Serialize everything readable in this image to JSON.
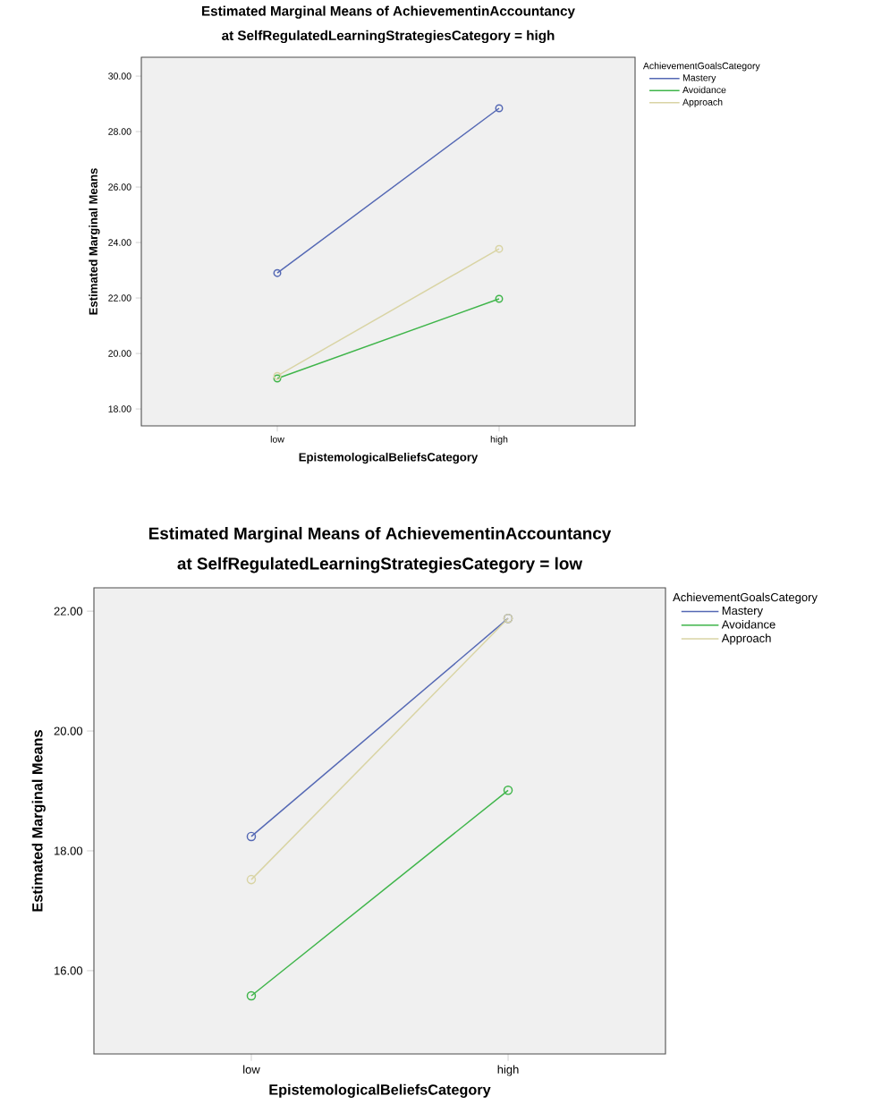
{
  "chart_data": [
    {
      "type": "line",
      "title": "Estimated Marginal Means of AchievementinAccountancy",
      "subtitle": "at SelfRegulatedLearningStrategiesCategory = high",
      "xlabel": "EpistemologicalBeliefsCategory",
      "ylabel": "Estimated Marginal Means",
      "legend_title": "AchievementGoalsCategory",
      "categories": [
        "low",
        "high"
      ],
      "series": [
        {
          "name": "Mastery",
          "color": "#5468b4",
          "values": [
            22.9,
            28.84
          ]
        },
        {
          "name": "Avoidance",
          "color": "#3fb54a",
          "values": [
            19.1,
            21.97
          ]
        },
        {
          "name": "Approach",
          "color": "#d9d4a4",
          "values": [
            19.19,
            23.77
          ]
        }
      ],
      "ylim": [
        17.39,
        30.68
      ],
      "yticks": [
        {
          "value": 18,
          "label": "18.00"
        },
        {
          "value": 20,
          "label": "20.00"
        },
        {
          "value": 22,
          "label": "22.00"
        },
        {
          "value": 24,
          "label": "24.00"
        },
        {
          "value": 26,
          "label": "26.00"
        },
        {
          "value": 28,
          "label": "28.00"
        },
        {
          "value": 30,
          "label": "30.00"
        }
      ],
      "marker": "circle",
      "legend": "right"
    },
    {
      "type": "line",
      "title": "Estimated Marginal Means of AchievementinAccountancy",
      "subtitle": "at SelfRegulatedLearningStrategiesCategory = low",
      "xlabel": "EpistemologicalBeliefsCategory",
      "ylabel": "Estimated Marginal Means",
      "legend_title": "AchievementGoalsCategory",
      "categories": [
        "low",
        "high"
      ],
      "series": [
        {
          "name": "Mastery",
          "color": "#5468b4",
          "values": [
            18.24,
            21.88
          ]
        },
        {
          "name": "Avoidance",
          "color": "#3fb54a",
          "values": [
            15.58,
            19.01
          ]
        },
        {
          "name": "Approach",
          "color": "#d9d4a4",
          "values": [
            17.52,
            21.88
          ]
        }
      ],
      "ylim": [
        14.61,
        22.39
      ],
      "yticks": [
        {
          "value": 16,
          "label": "16.00"
        },
        {
          "value": 18,
          "label": "18.00"
        },
        {
          "value": 20,
          "label": "20.00"
        },
        {
          "value": 22,
          "label": "22.00"
        }
      ],
      "marker": "circle",
      "legend": "right"
    }
  ]
}
